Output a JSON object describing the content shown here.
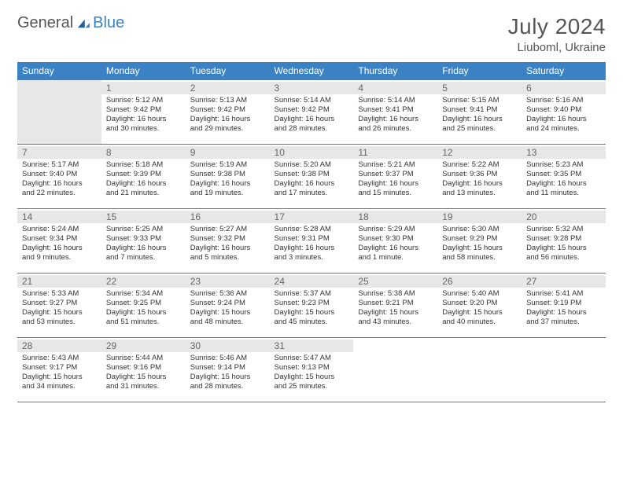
{
  "logo": {
    "text1": "General",
    "text2": "Blue",
    "color1": "#555555",
    "color2": "#3b82c4"
  },
  "title": "July 2024",
  "location": "Liuboml, Ukraine",
  "day_headers": [
    "Sunday",
    "Monday",
    "Tuesday",
    "Wednesday",
    "Thursday",
    "Friday",
    "Saturday"
  ],
  "colors": {
    "header_bg": "#3b82c4",
    "header_text": "#ffffff",
    "rule": "#3b82c4",
    "shade": "#e7e7e7",
    "text": "#333333"
  },
  "weeks": [
    [
      {
        "n": "",
        "lines": []
      },
      {
        "n": "1",
        "lines": [
          "Sunrise: 5:12 AM",
          "Sunset: 9:42 PM",
          "Daylight: 16 hours",
          "and 30 minutes."
        ]
      },
      {
        "n": "2",
        "lines": [
          "Sunrise: 5:13 AM",
          "Sunset: 9:42 PM",
          "Daylight: 16 hours",
          "and 29 minutes."
        ]
      },
      {
        "n": "3",
        "lines": [
          "Sunrise: 5:14 AM",
          "Sunset: 9:42 PM",
          "Daylight: 16 hours",
          "and 28 minutes."
        ]
      },
      {
        "n": "4",
        "lines": [
          "Sunrise: 5:14 AM",
          "Sunset: 9:41 PM",
          "Daylight: 16 hours",
          "and 26 minutes."
        ]
      },
      {
        "n": "5",
        "lines": [
          "Sunrise: 5:15 AM",
          "Sunset: 9:41 PM",
          "Daylight: 16 hours",
          "and 25 minutes."
        ]
      },
      {
        "n": "6",
        "lines": [
          "Sunrise: 5:16 AM",
          "Sunset: 9:40 PM",
          "Daylight: 16 hours",
          "and 24 minutes."
        ]
      }
    ],
    [
      {
        "n": "7",
        "lines": [
          "Sunrise: 5:17 AM",
          "Sunset: 9:40 PM",
          "Daylight: 16 hours",
          "and 22 minutes."
        ]
      },
      {
        "n": "8",
        "lines": [
          "Sunrise: 5:18 AM",
          "Sunset: 9:39 PM",
          "Daylight: 16 hours",
          "and 21 minutes."
        ]
      },
      {
        "n": "9",
        "lines": [
          "Sunrise: 5:19 AM",
          "Sunset: 9:38 PM",
          "Daylight: 16 hours",
          "and 19 minutes."
        ]
      },
      {
        "n": "10",
        "lines": [
          "Sunrise: 5:20 AM",
          "Sunset: 9:38 PM",
          "Daylight: 16 hours",
          "and 17 minutes."
        ]
      },
      {
        "n": "11",
        "lines": [
          "Sunrise: 5:21 AM",
          "Sunset: 9:37 PM",
          "Daylight: 16 hours",
          "and 15 minutes."
        ]
      },
      {
        "n": "12",
        "lines": [
          "Sunrise: 5:22 AM",
          "Sunset: 9:36 PM",
          "Daylight: 16 hours",
          "and 13 minutes."
        ]
      },
      {
        "n": "13",
        "lines": [
          "Sunrise: 5:23 AM",
          "Sunset: 9:35 PM",
          "Daylight: 16 hours",
          "and 11 minutes."
        ]
      }
    ],
    [
      {
        "n": "14",
        "lines": [
          "Sunrise: 5:24 AM",
          "Sunset: 9:34 PM",
          "Daylight: 16 hours",
          "and 9 minutes."
        ]
      },
      {
        "n": "15",
        "lines": [
          "Sunrise: 5:25 AM",
          "Sunset: 9:33 PM",
          "Daylight: 16 hours",
          "and 7 minutes."
        ]
      },
      {
        "n": "16",
        "lines": [
          "Sunrise: 5:27 AM",
          "Sunset: 9:32 PM",
          "Daylight: 16 hours",
          "and 5 minutes."
        ]
      },
      {
        "n": "17",
        "lines": [
          "Sunrise: 5:28 AM",
          "Sunset: 9:31 PM",
          "Daylight: 16 hours",
          "and 3 minutes."
        ]
      },
      {
        "n": "18",
        "lines": [
          "Sunrise: 5:29 AM",
          "Sunset: 9:30 PM",
          "Daylight: 16 hours",
          "and 1 minute."
        ]
      },
      {
        "n": "19",
        "lines": [
          "Sunrise: 5:30 AM",
          "Sunset: 9:29 PM",
          "Daylight: 15 hours",
          "and 58 minutes."
        ]
      },
      {
        "n": "20",
        "lines": [
          "Sunrise: 5:32 AM",
          "Sunset: 9:28 PM",
          "Daylight: 15 hours",
          "and 56 minutes."
        ]
      }
    ],
    [
      {
        "n": "21",
        "lines": [
          "Sunrise: 5:33 AM",
          "Sunset: 9:27 PM",
          "Daylight: 15 hours",
          "and 53 minutes."
        ]
      },
      {
        "n": "22",
        "lines": [
          "Sunrise: 5:34 AM",
          "Sunset: 9:25 PM",
          "Daylight: 15 hours",
          "and 51 minutes."
        ]
      },
      {
        "n": "23",
        "lines": [
          "Sunrise: 5:36 AM",
          "Sunset: 9:24 PM",
          "Daylight: 15 hours",
          "and 48 minutes."
        ]
      },
      {
        "n": "24",
        "lines": [
          "Sunrise: 5:37 AM",
          "Sunset: 9:23 PM",
          "Daylight: 15 hours",
          "and 45 minutes."
        ]
      },
      {
        "n": "25",
        "lines": [
          "Sunrise: 5:38 AM",
          "Sunset: 9:21 PM",
          "Daylight: 15 hours",
          "and 43 minutes."
        ]
      },
      {
        "n": "26",
        "lines": [
          "Sunrise: 5:40 AM",
          "Sunset: 9:20 PM",
          "Daylight: 15 hours",
          "and 40 minutes."
        ]
      },
      {
        "n": "27",
        "lines": [
          "Sunrise: 5:41 AM",
          "Sunset: 9:19 PM",
          "Daylight: 15 hours",
          "and 37 minutes."
        ]
      }
    ],
    [
      {
        "n": "28",
        "lines": [
          "Sunrise: 5:43 AM",
          "Sunset: 9:17 PM",
          "Daylight: 15 hours",
          "and 34 minutes."
        ]
      },
      {
        "n": "29",
        "lines": [
          "Sunrise: 5:44 AM",
          "Sunset: 9:16 PM",
          "Daylight: 15 hours",
          "and 31 minutes."
        ]
      },
      {
        "n": "30",
        "lines": [
          "Sunrise: 5:46 AM",
          "Sunset: 9:14 PM",
          "Daylight: 15 hours",
          "and 28 minutes."
        ]
      },
      {
        "n": "31",
        "lines": [
          "Sunrise: 5:47 AM",
          "Sunset: 9:13 PM",
          "Daylight: 15 hours",
          "and 25 minutes."
        ]
      },
      {
        "n": "",
        "lines": []
      },
      {
        "n": "",
        "lines": []
      },
      {
        "n": "",
        "lines": []
      }
    ]
  ]
}
